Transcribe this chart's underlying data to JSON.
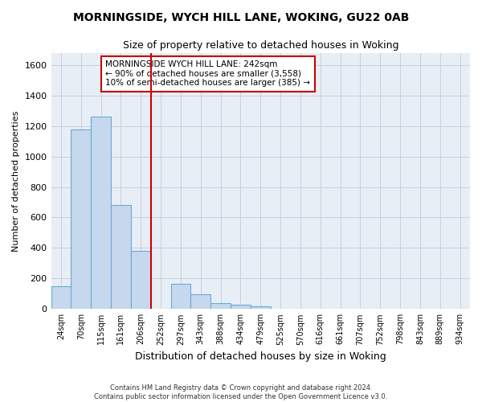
{
  "title_line1": "MORNINGSIDE, WYCH HILL LANE, WOKING, GU22 0AB",
  "title_line2": "Size of property relative to detached houses in Woking",
  "xlabel": "Distribution of detached houses by size in Woking",
  "ylabel": "Number of detached properties",
  "footer_line1": "Contains HM Land Registry data © Crown copyright and database right 2024.",
  "footer_line2": "Contains public sector information licensed under the Open Government Licence v3.0.",
  "bar_color": "#c5d8ee",
  "bar_edgecolor": "#6aaad4",
  "grid_color": "#c8d0de",
  "background_color": "#e8eef6",
  "annotation_box_color": "#cc0000",
  "vline_color": "#cc0000",
  "annotation_text_line1": "MORNINGSIDE WYCH HILL LANE: 242sqm",
  "annotation_text_line2": "← 90% of detached houses are smaller (3,558)",
  "annotation_text_line3": "10% of semi-detached houses are larger (385) →",
  "categories": [
    "24sqm",
    "70sqm",
    "115sqm",
    "161sqm",
    "206sqm",
    "252sqm",
    "297sqm",
    "343sqm",
    "388sqm",
    "434sqm",
    "479sqm",
    "525sqm",
    "570sqm",
    "616sqm",
    "661sqm",
    "707sqm",
    "752sqm",
    "798sqm",
    "843sqm",
    "889sqm",
    "934sqm"
  ],
  "values": [
    148,
    1175,
    1260,
    680,
    380,
    0,
    165,
    95,
    38,
    30,
    20,
    0,
    0,
    0,
    0,
    0,
    0,
    0,
    0,
    0,
    0
  ],
  "vline_x": 5.0,
  "ylim": [
    0,
    1680
  ],
  "yticks": [
    0,
    200,
    400,
    600,
    800,
    1000,
    1200,
    1400,
    1600
  ]
}
